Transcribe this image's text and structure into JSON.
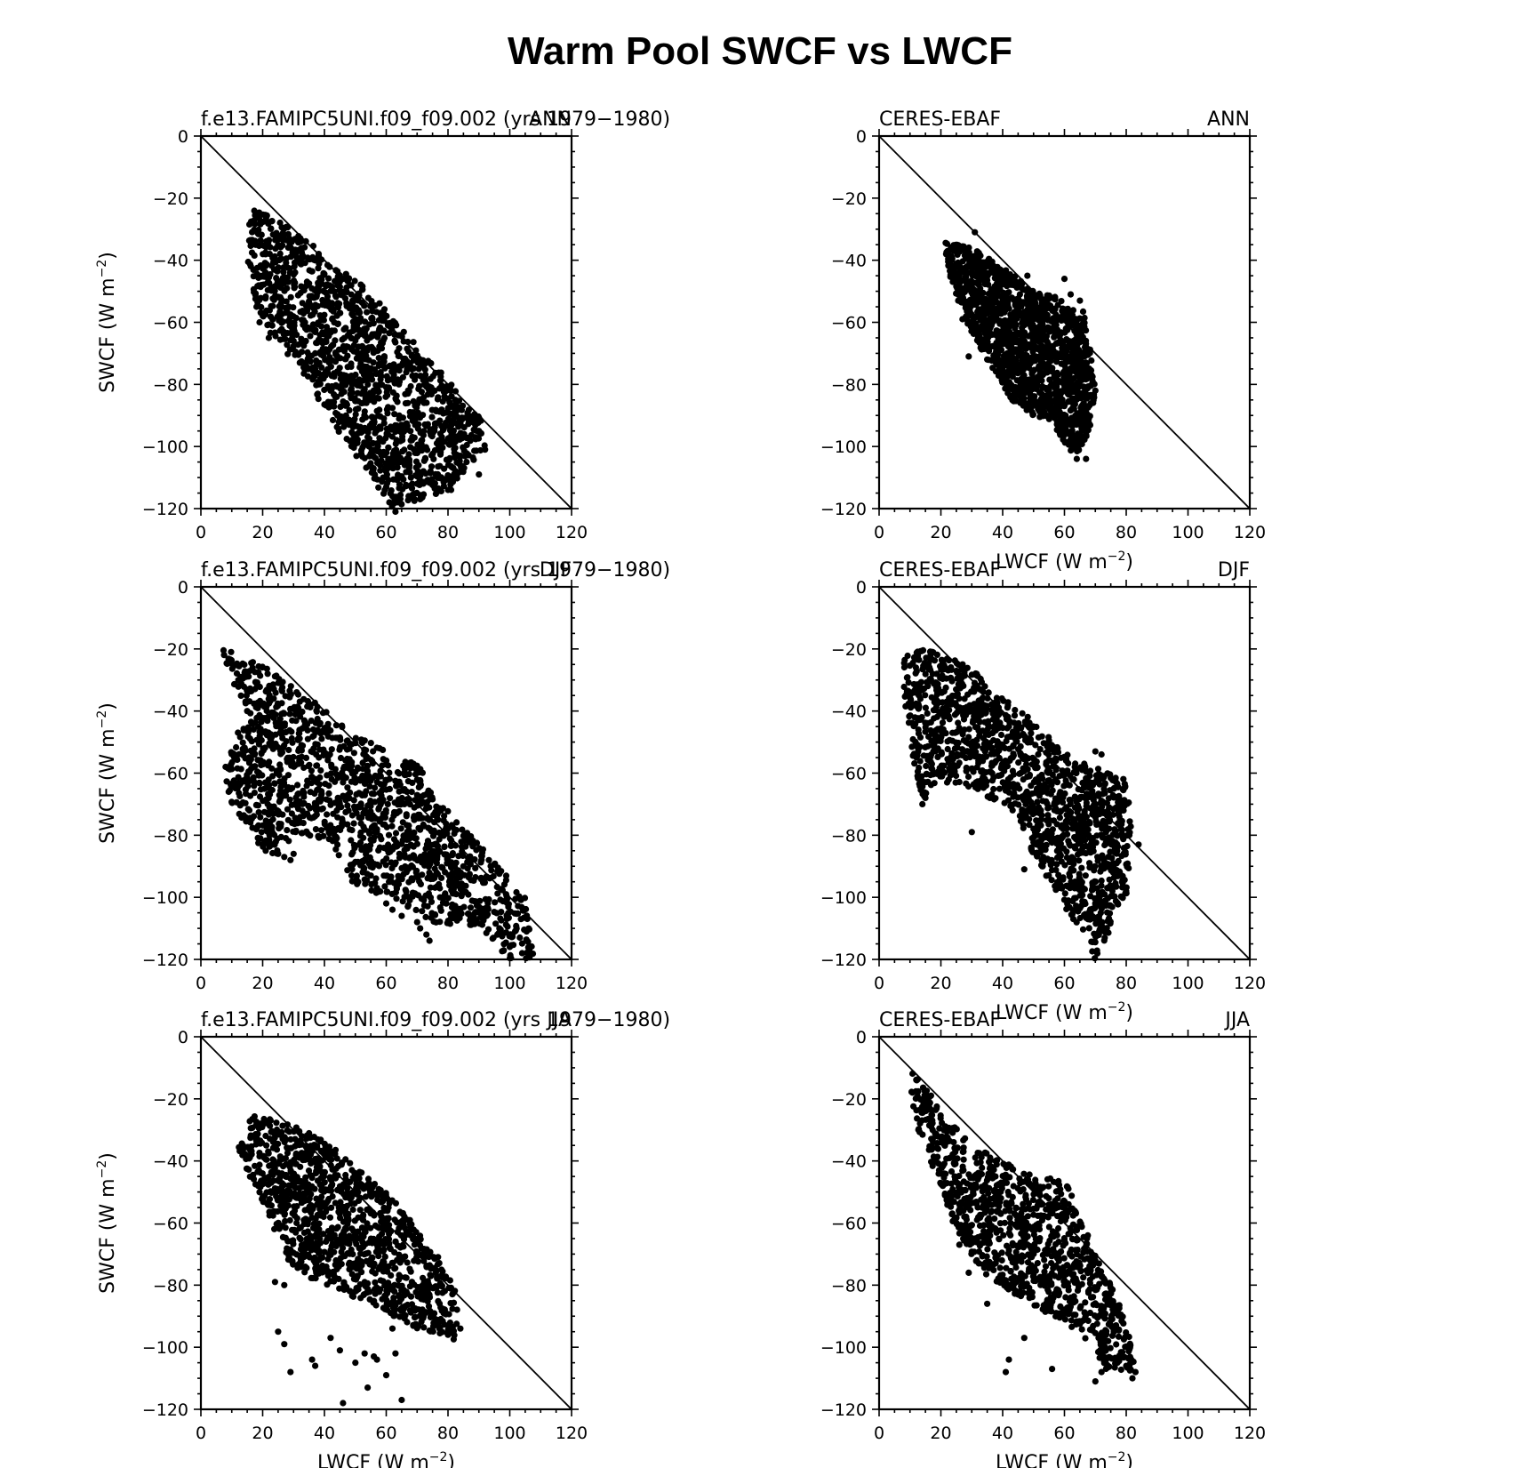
{
  "figure": {
    "title": "Warm Pool SWCF vs LWCF"
  },
  "chart_data": [
    {
      "type": "scatter",
      "left_label": "f.e13.FAMIPC5UNI.f09_f09.002 (yrs 1979−1980)",
      "right_label": "ANN",
      "xlabel": "",
      "ylabel": "SWCF (W m⁻²)",
      "xlim": [
        0,
        120
      ],
      "ylim": [
        -120,
        0
      ],
      "xticks": [
        "0",
        "20",
        "40",
        "60",
        "80",
        "100",
        "120"
      ],
      "yticks": [
        "0",
        "−20",
        "−40",
        "−60",
        "−80",
        "−100",
        "−120"
      ],
      "reference_line": "1:1 (SWCF = −LWCF)",
      "cloud": {
        "shape": [
          [
            15,
            -22
          ],
          [
            30,
            -30
          ],
          [
            45,
            -42
          ],
          [
            55,
            -50
          ],
          [
            65,
            -62
          ],
          [
            78,
            -76
          ],
          [
            92,
            -92
          ],
          [
            92,
            -100
          ],
          [
            80,
            -114
          ],
          [
            62,
            -120
          ],
          [
            55,
            -110
          ],
          [
            45,
            -96
          ],
          [
            35,
            -80
          ],
          [
            24,
            -66
          ],
          [
            18,
            -57
          ],
          [
            15,
            -40
          ]
        ],
        "n": 1500,
        "seed": 11
      },
      "points": [
        [
          18,
          -55
        ],
        [
          19,
          -60
        ],
        [
          22,
          -65
        ],
        [
          31,
          -64
        ],
        [
          34,
          -66
        ],
        [
          37,
          -70
        ],
        [
          42,
          -82
        ],
        [
          44,
          -84
        ],
        [
          47,
          -90
        ],
        [
          48,
          -93
        ],
        [
          50,
          -97
        ],
        [
          52,
          -83
        ],
        [
          55,
          -85
        ],
        [
          56,
          -94
        ],
        [
          57,
          -99
        ],
        [
          58,
          -106
        ],
        [
          59,
          -110
        ],
        [
          60,
          -113
        ],
        [
          61,
          -118
        ],
        [
          62,
          -116
        ],
        [
          63,
          -121
        ],
        [
          64,
          -104
        ],
        [
          66,
          -106
        ],
        [
          68,
          -110
        ],
        [
          70,
          -112
        ],
        [
          71,
          -117
        ],
        [
          72,
          -108
        ],
        [
          78,
          -97
        ],
        [
          81,
          -114
        ],
        [
          84,
          -103
        ],
        [
          86,
          -105
        ],
        [
          90,
          -95
        ],
        [
          92,
          -101
        ],
        [
          90,
          -109
        ]
      ]
    },
    {
      "type": "scatter",
      "left_label": "CERES-EBAF",
      "right_label": "ANN",
      "xlabel": "LWCF (W m⁻²)",
      "ylabel": "",
      "xlim": [
        0,
        120
      ],
      "ylim": [
        -120,
        0
      ],
      "xticks": [
        "0",
        "20",
        "40",
        "60",
        "80",
        "100",
        "120"
      ],
      "yticks": [
        "0",
        "−20",
        "−40",
        "−60",
        "−80",
        "−100",
        "−120"
      ],
      "reference_line": "1:1 (SWCF = −LWCF)",
      "cloud": {
        "shape": [
          [
            21,
            -34
          ],
          [
            30,
            -36
          ],
          [
            40,
            -42
          ],
          [
            50,
            -50
          ],
          [
            58,
            -52
          ],
          [
            66,
            -56
          ],
          [
            68,
            -66
          ],
          [
            70,
            -82
          ],
          [
            68,
            -96
          ],
          [
            63,
            -104
          ],
          [
            56,
            -92
          ],
          [
            50,
            -90
          ],
          [
            43,
            -85
          ],
          [
            35,
            -72
          ],
          [
            28,
            -60
          ],
          [
            23,
            -46
          ]
        ],
        "n": 1600,
        "seed": 23
      },
      "points": [
        [
          31,
          -31
        ],
        [
          48,
          -45
        ],
        [
          60,
          -46
        ],
        [
          62,
          -51
        ],
        [
          65,
          -53
        ],
        [
          64,
          -104
        ],
        [
          67,
          -104
        ],
        [
          70,
          -82
        ],
        [
          66,
          -97
        ],
        [
          29,
          -71
        ],
        [
          33,
          -67
        ],
        [
          27,
          -59
        ]
      ]
    },
    {
      "type": "scatter",
      "left_label": "f.e13.FAMIPC5UNI.f09_f09.002 (yrs 1979−1980)",
      "right_label": "DJF",
      "xlabel": "",
      "ylabel": "SWCF (W m⁻²)",
      "xlim": [
        0,
        120
      ],
      "ylim": [
        -120,
        0
      ],
      "xticks": [
        "0",
        "20",
        "40",
        "60",
        "80",
        "100",
        "120"
      ],
      "yticks": [
        "0",
        "−20",
        "−40",
        "−60",
        "−80",
        "−100",
        "−120"
      ],
      "reference_line": "1:1 (SWCF = −LWCF)",
      "cloud": {
        "shape": [
          [
            4,
            -18
          ],
          [
            20,
            -25
          ],
          [
            35,
            -36
          ],
          [
            48,
            -45
          ],
          [
            58,
            -52
          ],
          [
            70,
            -57
          ],
          [
            78,
            -70
          ],
          [
            92,
            -85
          ],
          [
            105,
            -100
          ],
          [
            108,
            -120
          ],
          [
            100,
            -120
          ],
          [
            90,
            -110
          ],
          [
            75,
            -108
          ],
          [
            62,
            -100
          ],
          [
            50,
            -97
          ],
          [
            42,
            -82
          ],
          [
            32,
            -80
          ],
          [
            22,
            -88
          ],
          [
            10,
            -70
          ],
          [
            7,
            -58
          ],
          [
            15,
            -40
          ]
        ],
        "n": 1500,
        "seed": 37
      },
      "points": [
        [
          8,
          -58
        ],
        [
          9,
          -66
        ],
        [
          11,
          -64
        ],
        [
          21,
          -82
        ],
        [
          23,
          -83
        ],
        [
          25,
          -86
        ],
        [
          27,
          -87
        ],
        [
          29,
          -88
        ],
        [
          30,
          -86
        ],
        [
          55,
          -93
        ],
        [
          57,
          -97
        ],
        [
          60,
          -102
        ],
        [
          62,
          -104
        ],
        [
          65,
          -106
        ],
        [
          67,
          -103
        ],
        [
          70,
          -108
        ],
        [
          71,
          -110
        ],
        [
          73,
          -112
        ],
        [
          74,
          -114
        ],
        [
          96,
          -112
        ],
        [
          100,
          -116
        ],
        [
          104,
          -118
        ]
      ]
    },
    {
      "type": "scatter",
      "left_label": "CERES-EBAF",
      "right_label": "DJF",
      "xlabel": "LWCF (W m⁻²)",
      "ylabel": "",
      "xlim": [
        0,
        120
      ],
      "ylim": [
        -120,
        0
      ],
      "xticks": [
        "0",
        "20",
        "40",
        "60",
        "80",
        "100",
        "120"
      ],
      "yticks": [
        "0",
        "−20",
        "−40",
        "−60",
        "−80",
        "−100",
        "−120"
      ],
      "reference_line": "1:1 (SWCF = −LWCF)",
      "cloud": {
        "shape": [
          [
            8,
            -22
          ],
          [
            15,
            -20
          ],
          [
            28,
            -25
          ],
          [
            40,
            -35
          ],
          [
            52,
            -45
          ],
          [
            62,
            -55
          ],
          [
            70,
            -58
          ],
          [
            80,
            -62
          ],
          [
            82,
            -80
          ],
          [
            80,
            -100
          ],
          [
            74,
            -112
          ],
          [
            70,
            -120
          ],
          [
            65,
            -112
          ],
          [
            58,
            -100
          ],
          [
            50,
            -86
          ],
          [
            42,
            -72
          ],
          [
            30,
            -65
          ],
          [
            20,
            -62
          ],
          [
            14,
            -70
          ],
          [
            11,
            -55
          ],
          [
            8,
            -35
          ]
        ],
        "n": 1500,
        "seed": 53
      },
      "points": [
        [
          14,
          -70
        ],
        [
          15,
          -68
        ],
        [
          22,
          -63
        ],
        [
          30,
          -79
        ],
        [
          47,
          -91
        ],
        [
          47,
          -48
        ],
        [
          70,
          -53
        ],
        [
          72,
          -54
        ],
        [
          81,
          -80
        ],
        [
          84,
          -83
        ],
        [
          78,
          -75
        ]
      ]
    },
    {
      "type": "scatter",
      "left_label": "f.e13.FAMIPC5UNI.f09_f09.002 (yrs 1979−1980)",
      "right_label": "JJA",
      "xlabel": "LWCF (W m⁻²)",
      "ylabel": "SWCF (W m⁻²)",
      "xlim": [
        0,
        120
      ],
      "ylim": [
        -120,
        0
      ],
      "xticks": [
        "0",
        "20",
        "40",
        "60",
        "80",
        "100",
        "120"
      ],
      "yticks": [
        "0",
        "−20",
        "−40",
        "−60",
        "−80",
        "−100",
        "−120"
      ],
      "reference_line": "1:1 (SWCF = −LWCF)",
      "cloud": {
        "shape": [
          [
            12,
            -36
          ],
          [
            16,
            -25
          ],
          [
            28,
            -28
          ],
          [
            40,
            -33
          ],
          [
            50,
            -42
          ],
          [
            62,
            -52
          ],
          [
            72,
            -64
          ],
          [
            78,
            -72
          ],
          [
            84,
            -85
          ],
          [
            82,
            -98
          ],
          [
            72,
            -95
          ],
          [
            62,
            -90
          ],
          [
            55,
            -86
          ],
          [
            45,
            -82
          ],
          [
            36,
            -78
          ],
          [
            28,
            -72
          ],
          [
            22,
            -58
          ],
          [
            16,
            -46
          ]
        ],
        "n": 1200,
        "seed": 71
      },
      "points": [
        [
          24,
          -79
        ],
        [
          27,
          -80
        ],
        [
          25,
          -95
        ],
        [
          27,
          -99
        ],
        [
          29,
          -108
        ],
        [
          36,
          -104
        ],
        [
          37,
          -106
        ],
        [
          42,
          -97
        ],
        [
          45,
          -101
        ],
        [
          46,
          -118
        ],
        [
          50,
          -105
        ],
        [
          53,
          -102
        ],
        [
          54,
          -113
        ],
        [
          56,
          -103
        ],
        [
          57,
          -104
        ],
        [
          60,
          -109
        ],
        [
          63,
          -102
        ],
        [
          65,
          -117
        ],
        [
          62,
          -94
        ],
        [
          70,
          -93
        ],
        [
          71,
          -90
        ],
        [
          76,
          -91
        ],
        [
          80,
          -96
        ],
        [
          84,
          -94
        ]
      ]
    },
    {
      "type": "scatter",
      "left_label": "CERES-EBAF",
      "right_label": "JJA",
      "xlabel": "LWCF (W m⁻²)",
      "ylabel": "",
      "xlim": [
        0,
        120
      ],
      "ylim": [
        -120,
        0
      ],
      "xticks": [
        "0",
        "20",
        "40",
        "60",
        "80",
        "100",
        "120"
      ],
      "yticks": [
        "0",
        "−20",
        "−40",
        "−60",
        "−80",
        "−100",
        "−120"
      ],
      "reference_line": "1:1 (SWCF = −LWCF)",
      "cloud": {
        "shape": [
          [
            9,
            -10
          ],
          [
            15,
            -16
          ],
          [
            22,
            -26
          ],
          [
            30,
            -35
          ],
          [
            40,
            -40
          ],
          [
            50,
            -45
          ],
          [
            60,
            -46
          ],
          [
            64,
            -55
          ],
          [
            70,
            -70
          ],
          [
            80,
            -90
          ],
          [
            83,
            -108
          ],
          [
            74,
            -108
          ],
          [
            66,
            -96
          ],
          [
            56,
            -90
          ],
          [
            46,
            -84
          ],
          [
            36,
            -78
          ],
          [
            30,
            -72
          ],
          [
            24,
            -60
          ],
          [
            16,
            -38
          ],
          [
            10,
            -24
          ]
        ],
        "n": 1100,
        "seed": 89
      },
      "points": [
        [
          41,
          -108
        ],
        [
          42,
          -104
        ],
        [
          47,
          -97
        ],
        [
          56,
          -107
        ],
        [
          70,
          -111
        ],
        [
          72,
          -108
        ],
        [
          80,
          -106
        ],
        [
          82,
          -110
        ],
        [
          83,
          -108
        ],
        [
          29,
          -76
        ],
        [
          26,
          -67
        ],
        [
          35,
          -86
        ]
      ]
    }
  ]
}
